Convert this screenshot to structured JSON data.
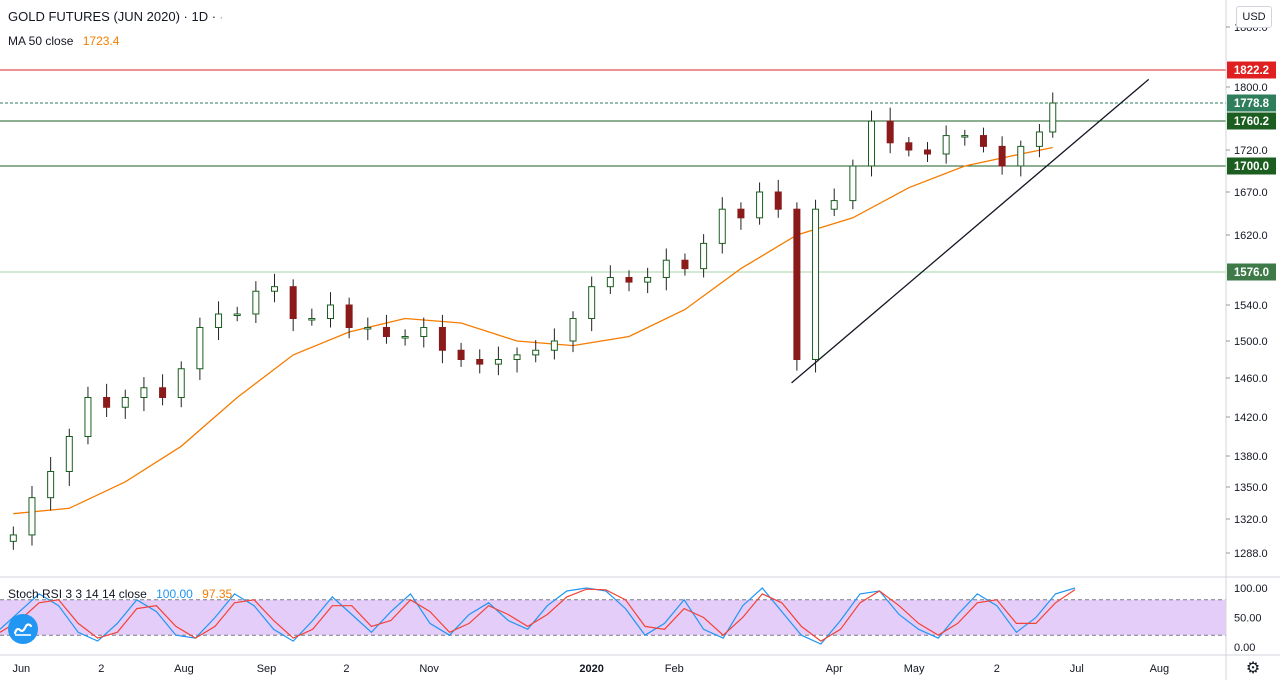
{
  "header": {
    "title": "GOLD FUTURES (JUN 2020) · 1D ·",
    "ma_label": "MA 50 close",
    "ma_value": "1723.4",
    "ma_color": "#f57c00"
  },
  "indicator": {
    "label": "Stoch RSI 3 3 14 14 close",
    "k_value": "100.00",
    "d_value": "97.35",
    "k_color": "#2196f3",
    "d_color": "#f44336"
  },
  "currency": "USD",
  "colors": {
    "up": "#26a69a",
    "down": "#ef5350",
    "up_body": "#1b5e20",
    "down_body": "#8b1a1a",
    "ma": "#f57c00",
    "resistance": "#e02020",
    "support_dark": "#1b5e20",
    "support_light": "#a5d6a7",
    "last_price": "#2e7d5b",
    "rsi_band": "#d9b8f5"
  },
  "chart_data": [
    {
      "type": "candlestick",
      "title": "GOLD FUTURES (JUN 2020) · 1D ·",
      "y_ticks": [
        1288.0,
        1320.0,
        1350.0,
        1380.0,
        1420.0,
        1460.0,
        1500.0,
        1540.0,
        1576.0,
        1620.0,
        1670.0,
        1700.0,
        1720.0,
        1760.2,
        1778.8,
        1800.0,
        1822.2,
        1880.0
      ],
      "x_ticks": [
        "Jun",
        "2",
        "Aug",
        "Sep",
        "2",
        "Nov",
        "2020",
        "Feb",
        "Apr",
        "May",
        "2",
        "Jul",
        "Aug"
      ],
      "ylim": [
        1275,
        1890
      ],
      "close_series": {
        "name": "GOLD FUTURES (JUN 2020)",
        "dates": [
          "2019-05-29",
          "2019-06-05",
          "2019-06-12",
          "2019-06-19",
          "2019-06-26",
          "2019-07-03",
          "2019-07-10",
          "2019-07-17",
          "2019-07-24",
          "2019-07-31",
          "2019-08-07",
          "2019-08-14",
          "2019-08-21",
          "2019-08-28",
          "2019-09-04",
          "2019-09-11",
          "2019-09-18",
          "2019-09-25",
          "2019-10-02",
          "2019-10-09",
          "2019-10-16",
          "2019-10-23",
          "2019-10-30",
          "2019-11-06",
          "2019-11-13",
          "2019-11-20",
          "2019-11-27",
          "2019-12-04",
          "2019-12-11",
          "2019-12-18",
          "2019-12-25",
          "2020-01-01",
          "2020-01-08",
          "2020-01-15",
          "2020-01-22",
          "2020-01-29",
          "2020-02-05",
          "2020-02-12",
          "2020-02-19",
          "2020-02-26",
          "2020-03-04",
          "2020-03-11",
          "2020-03-18",
          "2020-03-25",
          "2020-04-01",
          "2020-04-08",
          "2020-04-15",
          "2020-04-22",
          "2020-04-29",
          "2020-05-06",
          "2020-05-13",
          "2020-05-20",
          "2020-05-27",
          "2020-06-03",
          "2020-06-10",
          "2020-06-17",
          "2020-06-22"
        ],
        "values": [
          1305,
          1340,
          1365,
          1400,
          1440,
          1430,
          1440,
          1450,
          1440,
          1470,
          1515,
          1530,
          1530,
          1555,
          1560,
          1525,
          1525,
          1540,
          1515,
          1515,
          1505,
          1505,
          1515,
          1490,
          1480,
          1475,
          1480,
          1485,
          1490,
          1500,
          1525,
          1560,
          1570,
          1565,
          1570,
          1590,
          1580,
          1610,
          1650,
          1640,
          1670,
          1650,
          1480,
          1650,
          1660,
          1700,
          1760,
          1730,
          1720,
          1715,
          1740,
          1740,
          1725,
          1700,
          1725,
          1745,
          1778.8
        ]
      },
      "ma_series": {
        "name": "MA 50 close",
        "dates": [
          "2019-05-29",
          "2019-06-19",
          "2019-07-10",
          "2019-07-31",
          "2019-08-21",
          "2019-09-11",
          "2019-10-02",
          "2019-10-23",
          "2019-11-13",
          "2019-12-04",
          "2019-12-25",
          "2020-01-15",
          "2020-02-05",
          "2020-02-26",
          "2020-03-18",
          "2020-04-08",
          "2020-04-29",
          "2020-05-20",
          "2020-06-10",
          "2020-06-22"
        ],
        "values": [
          1325,
          1330,
          1355,
          1390,
          1440,
          1485,
          1510,
          1525,
          1520,
          1500,
          1495,
          1505,
          1535,
          1580,
          1620,
          1640,
          1675,
          1700,
          1715,
          1723.4
        ]
      },
      "horizontal_lines": [
        {
          "value": 1822.2,
          "label": "1822.2"
        },
        {
          "value": 1778.8,
          "label": "1778.8"
        },
        {
          "value": 1760.2,
          "label": "1760.2"
        },
        {
          "value": 1700.0,
          "label": "1700.0"
        },
        {
          "value": 1576.0,
          "label": "1576.0"
        }
      ],
      "trendline": {
        "start": {
          "date": "2020-03-16",
          "value": 1455
        },
        "end": {
          "date": "2020-07-28",
          "value": 1810
        }
      }
    },
    {
      "type": "line",
      "title": "Stoch RSI 3 3 14 14 close",
      "y_ticks": [
        0.0,
        50.0,
        100.0
      ],
      "ylim": [
        -5,
        105
      ],
      "bands": [
        20,
        80
      ],
      "series": [
        {
          "name": "K",
          "values": [
            30,
            60,
            90,
            70,
            25,
            10,
            40,
            80,
            60,
            20,
            15,
            50,
            90,
            70,
            30,
            10,
            45,
            85,
            55,
            25,
            60,
            90,
            40,
            20,
            55,
            75,
            45,
            30,
            70,
            95,
            100,
            95,
            65,
            20,
            40,
            80,
            30,
            15,
            70,
            100,
            60,
            20,
            5,
            45,
            90,
            95,
            55,
            30,
            15,
            55,
            90,
            70,
            25,
            50,
            90,
            100
          ]
        },
        {
          "name": "D",
          "values": [
            25,
            45,
            75,
            80,
            40,
            15,
            25,
            65,
            70,
            35,
            15,
            35,
            75,
            80,
            45,
            15,
            30,
            70,
            70,
            35,
            45,
            80,
            60,
            25,
            40,
            70,
            55,
            35,
            55,
            85,
            98,
            97,
            80,
            35,
            30,
            65,
            50,
            20,
            50,
            90,
            75,
            35,
            10,
            30,
            75,
            95,
            70,
            40,
            20,
            40,
            75,
            80,
            40,
            40,
            75,
            97.35
          ]
        }
      ]
    }
  ]
}
